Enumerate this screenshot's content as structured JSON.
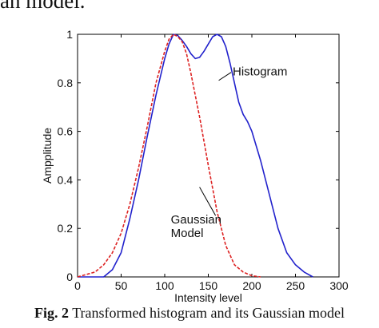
{
  "top_text": "an model.",
  "caption": {
    "label": "Fig. 2",
    "text": "Transformed histogram and its Gaussian model"
  },
  "chart_data": {
    "type": "line",
    "xlabel": "Intensity level",
    "ylabel": "Ampplitude",
    "xlim": [
      0,
      300
    ],
    "ylim": [
      0,
      1
    ],
    "xticks": [
      0,
      50,
      100,
      150,
      200,
      250,
      300
    ],
    "yticks": [
      0,
      0.2,
      0.4,
      0.6,
      0.8,
      1
    ],
    "grid": false,
    "series": [
      {
        "name": "Histogram",
        "color": "#2222cc",
        "dash": "solid",
        "x": [
          0,
          30,
          40,
          50,
          60,
          70,
          80,
          90,
          100,
          105,
          110,
          115,
          120,
          125,
          130,
          135,
          140,
          145,
          150,
          155,
          160,
          165,
          170,
          175,
          180,
          185,
          190,
          195,
          200,
          210,
          220,
          230,
          240,
          250,
          260,
          270
        ],
        "y": [
          0,
          0,
          0.03,
          0.1,
          0.24,
          0.4,
          0.58,
          0.75,
          0.9,
          0.96,
          1.0,
          0.995,
          0.975,
          0.95,
          0.92,
          0.9,
          0.905,
          0.93,
          0.96,
          0.99,
          1.0,
          0.99,
          0.95,
          0.88,
          0.8,
          0.72,
          0.67,
          0.64,
          0.6,
          0.48,
          0.34,
          0.2,
          0.1,
          0.05,
          0.02,
          0
        ]
      },
      {
        "name": "Gaussian Model",
        "color": "#dd2222",
        "dash": "dashed",
        "x": [
          0,
          20,
          30,
          40,
          50,
          60,
          70,
          80,
          90,
          100,
          105,
          110,
          115,
          120,
          125,
          130,
          140,
          150,
          160,
          170,
          180,
          190,
          200,
          210
        ],
        "y": [
          0,
          0.02,
          0.05,
          0.1,
          0.18,
          0.3,
          0.45,
          0.62,
          0.8,
          0.93,
          0.98,
          1.0,
          0.99,
          0.97,
          0.92,
          0.84,
          0.66,
          0.46,
          0.27,
          0.13,
          0.05,
          0.02,
          0.005,
          0
        ]
      }
    ],
    "annotations": [
      {
        "lines": [
          "Histogram"
        ],
        "x": 178,
        "y": 0.83,
        "arrow_to": [
          162,
          0.81
        ]
      },
      {
        "lines": [
          "Gaussian",
          "Model"
        ],
        "x": 107,
        "y": 0.22,
        "arrow_to": [
          140,
          0.37
        ]
      }
    ]
  }
}
